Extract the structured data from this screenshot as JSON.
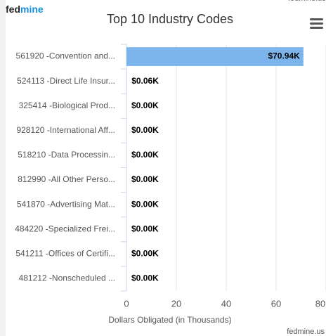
{
  "logo": {
    "part1": "fed",
    "part2": "mine"
  },
  "credit": "fedmine.us",
  "chart_data": {
    "type": "hbar",
    "title": "Top 10 Industry Codes",
    "categories": [
      "561920 -Convention and...",
      "524113 -Direct Life Insur...",
      "325414 -Biological Prod...",
      "928120 -International Aff...",
      "518210 -Data Processin...",
      "812990 -All Other Perso...",
      "541870 -Advertising Mat...",
      "484220 -Specialized Frei...",
      "541211 -Offices of Certifi...",
      "481212 -Nonscheduled ..."
    ],
    "values": [
      70.94,
      0.06,
      0,
      0,
      0,
      0,
      0,
      0,
      0,
      0
    ],
    "value_labels": [
      "$70.94K",
      "$0.06K",
      "$0.00K",
      "$0.00K",
      "$0.00K",
      "$0.00K",
      "$0.00K",
      "$0.00K",
      "$0.00K",
      "$0.00K"
    ],
    "color": "#7cb5ec",
    "xlim": [
      0,
      80
    ],
    "xticks": [
      0,
      20,
      40,
      60,
      80
    ],
    "xlabel": "Dollars Obligated (in Thousands)",
    "grid": true
  }
}
